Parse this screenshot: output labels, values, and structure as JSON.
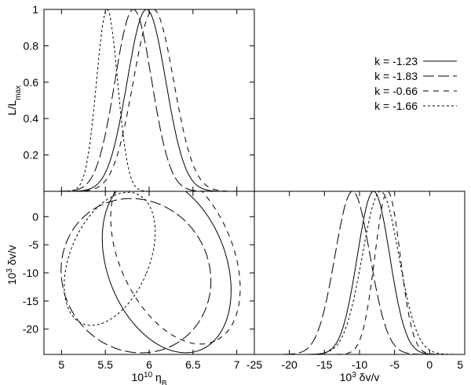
{
  "chart_data": [
    {
      "panel": "top-left",
      "type": "line",
      "ylabel": {
        "base": "L/L",
        "sub": "max"
      },
      "xlim": [
        4.8,
        7.2
      ],
      "ylim": [
        0,
        1
      ],
      "x_ticks": [
        5,
        5.5,
        6,
        6.5,
        7
      ],
      "y_ticks": [
        "0.2",
        "0.4",
        "0.6",
        "0.8",
        "1"
      ],
      "series": [
        {
          "name": "k = -1.23",
          "style": "solid",
          "curve": "gauss",
          "mean": 5.97,
          "sigma": 0.22
        },
        {
          "name": "k = -1.83",
          "style": "long-dash",
          "curve": "gauss",
          "mean": 5.82,
          "sigma": 0.21
        },
        {
          "name": "k = -0.66",
          "style": "dash",
          "curve": "gauss",
          "mean": 6.05,
          "sigma": 0.23
        },
        {
          "name": "k = -1.66",
          "style": "short-dash",
          "curve": "gauss",
          "mean": 5.52,
          "sigma": 0.12
        }
      ],
      "legend": {
        "placement": "right",
        "entries": [
          "k = -1.23",
          "k = -1.83",
          "k = -0.66",
          "k = -1.66"
        ]
      }
    },
    {
      "panel": "bottom-left",
      "type": "line",
      "subtype": "contour",
      "xlabel": {
        "base": "10",
        "sup": "10",
        "tail": " η",
        "sub": "B"
      },
      "ylabel": {
        "base": "10",
        "sup": "3",
        "tail": " δv/v"
      },
      "xlim": [
        4.8,
        7.2
      ],
      "ylim": [
        -24.5,
        4.5
      ],
      "x_ticks": [
        "5",
        "5.5",
        "6",
        "6.5",
        "7"
      ],
      "y_ticks": [
        "0",
        "-5",
        "-10",
        "-15",
        "-20"
      ],
      "series": [
        {
          "name": "k = -1.23",
          "style": "solid",
          "curve": "ellipse",
          "cx": 6.2,
          "cy": -8.5,
          "rx": 1.05,
          "ry": 10.5,
          "angle": 1.2
        },
        {
          "name": "k = -1.83",
          "style": "long-dash",
          "curve": "ellipse",
          "cx": 5.85,
          "cy": -10.5,
          "rx": 0.9,
          "ry": 13.0,
          "angle": 1.0
        },
        {
          "name": "k = -0.66",
          "style": "dash",
          "curve": "ellipse",
          "cx": 6.3,
          "cy": -6.5,
          "rx": 1.1,
          "ry": 10.0,
          "angle": 1.15
        },
        {
          "name": "k = -1.66",
          "style": "short-dash",
          "curve": "ellipse",
          "cx": 5.55,
          "cy": -7.5,
          "rx": 0.45,
          "ry": 12.5,
          "angle": 0.4
        }
      ]
    },
    {
      "panel": "bottom-right",
      "type": "line",
      "xlabel": {
        "base": "10",
        "sup": "3",
        "tail": " δv/v"
      },
      "xlim": [
        -25,
        5
      ],
      "ylim": [
        0,
        1
      ],
      "x_ticks": [
        "-25",
        "-20",
        "-15",
        "-10",
        "-5",
        "0",
        "5"
      ],
      "series": [
        {
          "name": "k = -1.23",
          "style": "solid",
          "curve": "gauss",
          "mean": -8.0,
          "sigma": 2.3
        },
        {
          "name": "k = -1.83",
          "style": "long-dash",
          "curve": "gauss",
          "mean": -11.0,
          "sigma": 2.5
        },
        {
          "name": "k = -0.66",
          "style": "dash",
          "curve": "gauss",
          "mean": -6.0,
          "sigma": 1.8
        },
        {
          "name": "k = -1.66",
          "style": "short-dash",
          "curve": "gauss",
          "mean": -7.0,
          "sigma": 2.6
        }
      ]
    }
  ]
}
